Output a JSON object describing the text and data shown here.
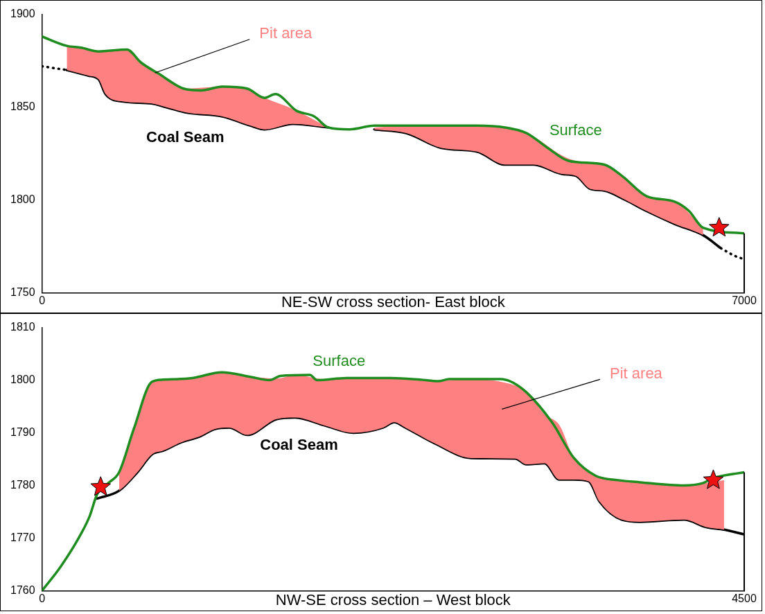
{
  "chart_data": [
    {
      "type": "line",
      "xlabel": "NE-SW cross section- East block",
      "xlim": [
        0,
        7000
      ],
      "xticks": [
        0,
        7000
      ],
      "ylim": [
        1750,
        1900
      ],
      "yticks": [
        1750,
        1800,
        1850,
        1900
      ],
      "grid": false,
      "marker": "none",
      "series": [
        {
          "name": "Surface",
          "color": "#1e8c1e",
          "x": [
            0,
            247,
            388,
            564,
            846,
            987,
            1163,
            1410,
            1586,
            1797,
            2044,
            2220,
            2326,
            2538,
            2714,
            2855,
            3066,
            3313,
            3630,
            4336,
            4618,
            4829,
            5041,
            5252,
            5604,
            5780,
            6027,
            6309,
            6450,
            6591,
            7000
          ],
          "values": [
            1888,
            1883,
            1882,
            1880,
            1881,
            1874,
            1868,
            1860,
            1859,
            1861,
            1860,
            1855,
            1857,
            1848,
            1845,
            1839,
            1838,
            1840,
            1840,
            1840,
            1839,
            1836,
            1828,
            1821,
            1819,
            1813,
            1802,
            1799,
            1794,
            1785,
            1782
          ]
        },
        {
          "name": "Pit area",
          "type": "area",
          "color": "#ff8080",
          "x": [
            247,
            458,
            564,
            634,
            810,
            1092,
            1233,
            1445,
            1797,
            2079,
            2220,
            2502,
            2855,
            3000,
            3313,
            3630,
            3983,
            4336,
            4618,
            4900,
            5182,
            5322,
            5463,
            5604,
            5815,
            6027,
            6309,
            6591
          ],
          "values": [
            1883,
            1881,
            1880,
            1880,
            1881,
            1870,
            1866,
            1860,
            1861,
            1859,
            1855,
            1849,
            1839,
            null,
            1839,
            1840,
            1840,
            1840,
            1839,
            1834,
            1824,
            1821,
            1820,
            1819,
            1812,
            1802,
            1799,
            1785
          ]
        },
        {
          "name": "Coal Seam",
          "color": "#000000",
          "x": [
            247,
            458,
            564,
            634,
            810,
            1092,
            1233,
            1445,
            1797,
            2079,
            2220,
            2502,
            2855,
            null,
            3313,
            3630,
            3983,
            4336,
            4618,
            4900,
            5182,
            5322,
            5463,
            5604,
            5815,
            6027,
            6309,
            6591,
            6767
          ],
          "values": [
            1870,
            1867,
            1865,
            1857,
            1853,
            1852,
            1850,
            1847,
            1845,
            1840,
            1838,
            1841,
            1839,
            null,
            1838,
            1836,
            1828,
            1826,
            1819,
            1819,
            1814,
            1813,
            1806,
            1805,
            1800,
            1794,
            1787,
            1781,
            1774
          ]
        },
        {
          "color": "#000000",
          "line_style": "dotted",
          "x": [
            0,
            120,
            247
          ],
          "values": [
            1872,
            1871,
            1870
          ]
        },
        {
          "color": "#000000",
          "line_style": "dotted",
          "x": [
            6767,
            6900,
            7000
          ],
          "values": [
            1774,
            1770,
            1768
          ]
        },
        {
          "type": "scatter",
          "color": "#ee1111",
          "marker": "star",
          "x": [
            6750
          ],
          "values": [
            1785
          ]
        }
      ],
      "ref_lines": [
        {
          "axis": "x",
          "value": 7000,
          "color": "#000000"
        }
      ]
    },
    {
      "type": "line",
      "xlabel": "NW-SE cross section – West block",
      "xlim": [
        0,
        4500
      ],
      "xticks": [
        0,
        4500
      ],
      "ylim": [
        1760,
        1810
      ],
      "yticks": [
        1760,
        1770,
        1780,
        1790,
        1800,
        1810
      ],
      "grid": false,
      "marker": "none",
      "series": [
        {
          "name": "Surface",
          "color": "#1e8c1e",
          "x": [
            0,
            118,
            235,
            306,
            353,
            423,
            494,
            588,
            705,
            776,
            964,
            1152,
            1340,
            1458,
            1528,
            1716,
            1763,
            1952,
            2234,
            2422,
            2539,
            2610,
            2939,
            3080,
            3268,
            3409,
            3550,
            3691,
            3832,
            4114,
            4231,
            4302,
            4500
          ],
          "values": [
            1760,
            1764.5,
            1770,
            1774.2,
            1778.3,
            1780.4,
            1782.5,
            1790.7,
            1799.7,
            1800.1,
            1800.4,
            1801.5,
            1800.6,
            1800,
            1800.8,
            1801,
            1800,
            1800.4,
            1800.4,
            1800.1,
            1799.8,
            1800.2,
            1800.2,
            1798.3,
            1792,
            1785.2,
            1781.8,
            1781,
            1780.6,
            1780,
            1780.4,
            1781.4,
            1782.5
          ]
        },
        {
          "name": "Pit area",
          "type": "area",
          "color": "#ff8080",
          "x": [
            494,
            611,
            705,
            776,
            893,
            1011,
            1105,
            1199,
            1316,
            1504,
            1622,
            1810,
            1998,
            2187,
            2257,
            2328,
            2516,
            2751,
            3033,
            3104,
            3221,
            3315,
            3409,
            3503,
            3574,
            3715,
            3832,
            4114,
            4255,
            4371
          ],
          "values": [
            1782.5,
            1792.5,
            1799.7,
            1800.1,
            1800.3,
            1800.6,
            1801.2,
            1801.4,
            1800.8,
            1800.3,
            1801,
            1800.2,
            1800.4,
            1800.4,
            1800.4,
            1800.3,
            1799.9,
            1800.2,
            1799,
            1798,
            1793.5,
            1791.5,
            1785.2,
            1782.5,
            1781.7,
            1781,
            1780.6,
            1780,
            1780.5,
            1781
          ]
        },
        {
          "name": "Coal Seam",
          "color": "#000000",
          "x": [
            353,
            494,
            611,
            705,
            776,
            893,
            1011,
            1105,
            1199,
            1316,
            1504,
            1622,
            1810,
            1998,
            2187,
            2257,
            2328,
            2516,
            2751,
            3033,
            3104,
            3221,
            3315,
            3409,
            3503,
            3574,
            3715,
            3832,
            4114,
            4255,
            4371,
            4500
          ],
          "values": [
            1777.5,
            1779,
            1782.5,
            1785.9,
            1786.6,
            1788.2,
            1789.3,
            1790.7,
            1791,
            1789.6,
            1792.6,
            1792.9,
            1791.4,
            1790,
            1791,
            1792,
            1791,
            1788,
            1785.2,
            1785.1,
            1784,
            1784.2,
            1781.1,
            1781.1,
            1780.8,
            1776.9,
            1773.5,
            1773.1,
            1773.5,
            1772.1,
            1771.6,
            1770.7
          ]
        },
        {
          "type": "scatter",
          "color": "#ee1111",
          "marker": "star",
          "x": [
            376,
            4302
          ],
          "values": [
            1779.7,
            1781
          ]
        }
      ],
      "ref_lines": [
        {
          "axis": "x",
          "value": 4500,
          "color": "#000000"
        }
      ]
    }
  ]
}
